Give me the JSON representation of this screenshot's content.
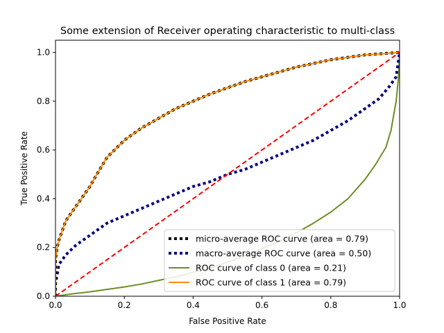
{
  "chart_data": {
    "type": "line",
    "title": "Some extension of Receiver operating characteristic to multi-class",
    "xlabel": "False Positive Rate",
    "ylabel": "True Positive Rate",
    "xlim": [
      0.0,
      1.0
    ],
    "ylim": [
      0.0,
      1.05
    ],
    "xticks": [
      "0.0",
      "0.2",
      "0.4",
      "0.6",
      "0.8",
      "1.0"
    ],
    "yticks": [
      "0.0",
      "0.2",
      "0.4",
      "0.6",
      "0.8",
      "1.0"
    ],
    "xtick_values": [
      0.0,
      0.2,
      0.4,
      0.6,
      0.8,
      1.0
    ],
    "ytick_values": [
      0.0,
      0.2,
      0.4,
      0.6,
      0.8,
      1.0
    ],
    "grid": false,
    "legend_position": "lower-right",
    "series": [
      {
        "name": "micro-average ROC curve (area = 0.79)",
        "color": "#000000",
        "style": "dotted",
        "x": [
          0.0,
          0.0,
          0.005,
          0.01,
          0.02,
          0.03,
          0.05,
          0.08,
          0.1,
          0.12,
          0.15,
          0.2,
          0.25,
          0.3,
          0.35,
          0.4,
          0.45,
          0.5,
          0.55,
          0.6,
          0.65,
          0.7,
          0.75,
          0.8,
          0.85,
          0.9,
          0.95,
          1.0
        ],
        "y": [
          0.0,
          0.15,
          0.2,
          0.23,
          0.27,
          0.31,
          0.35,
          0.41,
          0.45,
          0.5,
          0.57,
          0.64,
          0.69,
          0.73,
          0.77,
          0.8,
          0.83,
          0.855,
          0.88,
          0.9,
          0.92,
          0.94,
          0.955,
          0.97,
          0.98,
          0.99,
          0.995,
          1.0
        ]
      },
      {
        "name": "macro-average ROC curve (area = 0.50)",
        "color": "#000080",
        "style": "dotted",
        "x": [
          0.0,
          0.0,
          0.01,
          0.03,
          0.06,
          0.1,
          0.15,
          0.2,
          0.25,
          0.3,
          0.35,
          0.4,
          0.45,
          0.5,
          0.55,
          0.6,
          0.65,
          0.7,
          0.75,
          0.8,
          0.85,
          0.9,
          0.94,
          0.97,
          0.99,
          1.0
        ],
        "y": [
          0.0,
          0.05,
          0.13,
          0.17,
          0.21,
          0.25,
          0.3,
          0.33,
          0.36,
          0.39,
          0.42,
          0.45,
          0.47,
          0.5,
          0.52,
          0.55,
          0.58,
          0.61,
          0.64,
          0.68,
          0.72,
          0.77,
          0.81,
          0.86,
          0.9,
          1.0
        ]
      },
      {
        "name": "ROC curve of class 0 (area = 0.21)",
        "color": "#6b8e23",
        "style": "solid",
        "x": [
          0.0,
          0.05,
          0.1,
          0.15,
          0.2,
          0.25,
          0.3,
          0.35,
          0.4,
          0.45,
          0.5,
          0.55,
          0.6,
          0.65,
          0.7,
          0.75,
          0.8,
          0.85,
          0.9,
          0.93,
          0.96,
          0.975,
          0.99,
          0.997,
          1.0
        ],
        "y": [
          0.0,
          0.01,
          0.018,
          0.028,
          0.038,
          0.05,
          0.065,
          0.08,
          0.098,
          0.115,
          0.14,
          0.165,
          0.195,
          0.225,
          0.26,
          0.3,
          0.345,
          0.4,
          0.48,
          0.54,
          0.61,
          0.68,
          0.8,
          0.9,
          1.0
        ]
      },
      {
        "name": "ROC curve of class 1 (area = 0.79)",
        "color": "#ff8c00",
        "style": "solid",
        "x": [
          0.0,
          0.0,
          0.005,
          0.01,
          0.02,
          0.03,
          0.05,
          0.08,
          0.1,
          0.12,
          0.15,
          0.2,
          0.25,
          0.3,
          0.35,
          0.4,
          0.45,
          0.5,
          0.55,
          0.6,
          0.65,
          0.7,
          0.75,
          0.8,
          0.85,
          0.9,
          0.95,
          1.0
        ],
        "y": [
          0.0,
          0.15,
          0.2,
          0.23,
          0.27,
          0.31,
          0.35,
          0.41,
          0.45,
          0.5,
          0.57,
          0.64,
          0.69,
          0.73,
          0.77,
          0.8,
          0.83,
          0.855,
          0.88,
          0.9,
          0.92,
          0.94,
          0.955,
          0.97,
          0.98,
          0.99,
          0.995,
          1.0
        ]
      }
    ],
    "reference_line": {
      "color": "#ff0000",
      "style": "dashed",
      "x": [
        0.0,
        1.0
      ],
      "y": [
        0.0,
        1.0
      ]
    }
  }
}
